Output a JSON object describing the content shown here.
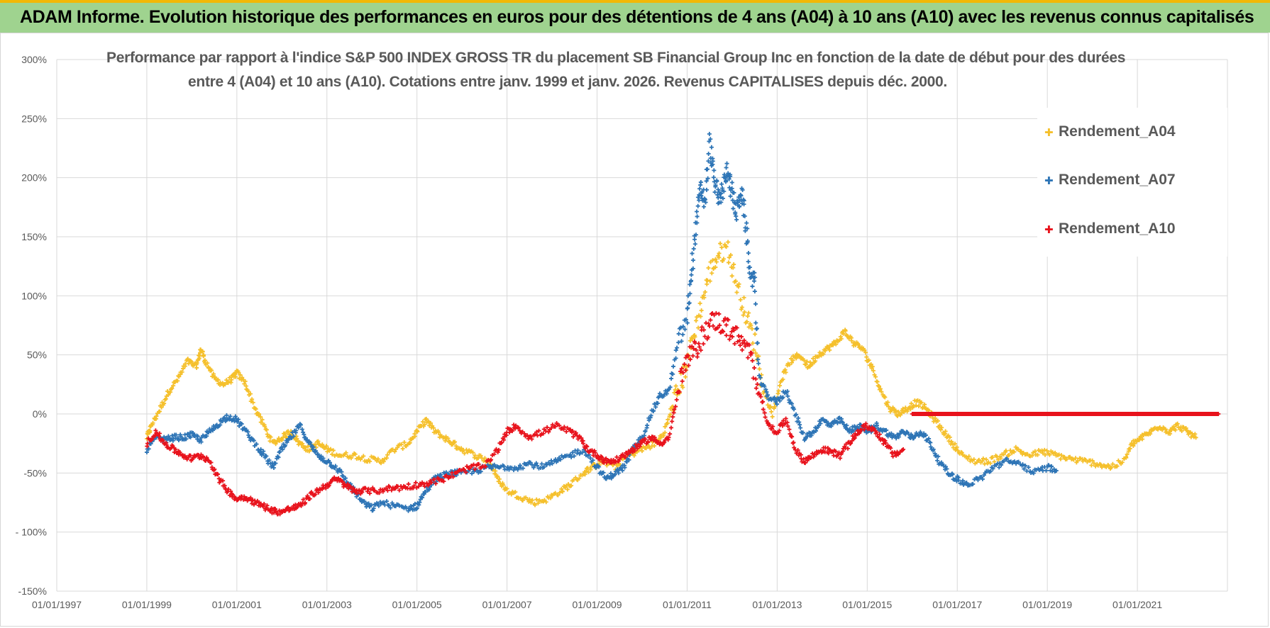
{
  "header": {
    "title": "ADAM Informe. Evolution historique des performances en euros pour des détentions de 4 ans (A04) à 10 ans (A10) avec les revenus connus capitalisés"
  },
  "chart_data": {
    "type": "scatter",
    "title_line1": "Performance par rapport à l'indice S&P 500 INDEX GROSS TR  du placement SB Financial Group Inc en fonction de la date de début pour des durées",
    "title_line2": "entre 4 (A04) et 10 ans (A10).  Cotations entre janv. 1999 et janv. 2026. Revenus CAPITALISES depuis déc. 2000.",
    "xlabel": "",
    "ylabel": "",
    "x_tick_labels": [
      "01/01/1997",
      "01/01/1999",
      "01/01/2001",
      "01/01/2003",
      "01/01/2005",
      "01/01/2007",
      "01/01/2009",
      "01/01/2011",
      "01/01/2013",
      "01/01/2015",
      "01/01/2017",
      "01/01/2019",
      "01/01/2021"
    ],
    "x_ticks_year": [
      1997,
      1999,
      2001,
      2003,
      2005,
      2007,
      2009,
      2011,
      2013,
      2015,
      2017,
      2019,
      2021
    ],
    "xlim": [
      1997,
      2023
    ],
    "y_tick_values": [
      300,
      250,
      200,
      150,
      100,
      50,
      0,
      -50,
      -100,
      -150
    ],
    "y_tick_labels": [
      "300%",
      "250%",
      "200%",
      "150%",
      "100%",
      "50%",
      "0%",
      "-50%",
      "- 100%",
      "-150%"
    ],
    "ylim": [
      -150,
      300
    ],
    "legend_position": "top-right",
    "series": [
      {
        "name": "Rendement_A04",
        "color": "#f5c02c",
        "points": [
          [
            1999.0,
            -20
          ],
          [
            1999.1,
            -10
          ],
          [
            1999.3,
            5
          ],
          [
            1999.5,
            20
          ],
          [
            1999.7,
            30
          ],
          [
            1999.9,
            45
          ],
          [
            2000.1,
            40
          ],
          [
            2000.2,
            55
          ],
          [
            2000.3,
            45
          ],
          [
            2000.5,
            30
          ],
          [
            2000.7,
            25
          ],
          [
            2000.9,
            30
          ],
          [
            2001.0,
            35
          ],
          [
            2001.2,
            25
          ],
          [
            2001.4,
            5
          ],
          [
            2001.6,
            -10
          ],
          [
            2001.8,
            -25
          ],
          [
            2002.0,
            -20
          ],
          [
            2002.2,
            -15
          ],
          [
            2002.4,
            -25
          ],
          [
            2002.6,
            -30
          ],
          [
            2002.8,
            -25
          ],
          [
            2003.0,
            -30
          ],
          [
            2003.3,
            -35
          ],
          [
            2003.6,
            -35
          ],
          [
            2003.9,
            -38
          ],
          [
            2004.2,
            -40
          ],
          [
            2004.5,
            -30
          ],
          [
            2004.8,
            -25
          ],
          [
            2005.0,
            -15
          ],
          [
            2005.2,
            -5
          ],
          [
            2005.4,
            -15
          ],
          [
            2005.6,
            -20
          ],
          [
            2005.8,
            -25
          ],
          [
            2006.0,
            -30
          ],
          [
            2006.3,
            -35
          ],
          [
            2006.6,
            -40
          ],
          [
            2006.8,
            -55
          ],
          [
            2007.0,
            -65
          ],
          [
            2007.3,
            -70
          ],
          [
            2007.6,
            -75
          ],
          [
            2007.9,
            -72
          ],
          [
            2008.2,
            -65
          ],
          [
            2008.4,
            -60
          ],
          [
            2008.7,
            -50
          ],
          [
            2008.9,
            -45
          ],
          [
            2009.1,
            -40
          ],
          [
            2009.4,
            -45
          ],
          [
            2009.7,
            -35
          ],
          [
            2010.0,
            -30
          ],
          [
            2010.3,
            -25
          ],
          [
            2010.5,
            -15
          ],
          [
            2010.7,
            10
          ],
          [
            2010.9,
            30
          ],
          [
            2011.1,
            60
          ],
          [
            2011.3,
            90
          ],
          [
            2011.5,
            120
          ],
          [
            2011.7,
            135
          ],
          [
            2011.9,
            140
          ],
          [
            2012.1,
            110
          ],
          [
            2012.3,
            85
          ],
          [
            2012.5,
            60
          ],
          [
            2012.7,
            20
          ],
          [
            2012.9,
            0
          ],
          [
            2013.1,
            30
          ],
          [
            2013.3,
            45
          ],
          [
            2013.5,
            50
          ],
          [
            2013.7,
            40
          ],
          [
            2013.9,
            50
          ],
          [
            2014.1,
            55
          ],
          [
            2014.3,
            60
          ],
          [
            2014.5,
            70
          ],
          [
            2014.7,
            60
          ],
          [
            2014.9,
            55
          ],
          [
            2015.1,
            40
          ],
          [
            2015.3,
            20
          ],
          [
            2015.5,
            5
          ],
          [
            2015.7,
            0
          ],
          [
            2015.9,
            5
          ],
          [
            2016.1,
            10
          ],
          [
            2016.3,
            5
          ],
          [
            2016.5,
            -5
          ],
          [
            2016.7,
            -15
          ],
          [
            2016.9,
            -25
          ],
          [
            2017.1,
            -35
          ],
          [
            2017.4,
            -40
          ],
          [
            2017.7,
            -40
          ],
          [
            2018.0,
            -35
          ],
          [
            2018.3,
            -30
          ],
          [
            2018.6,
            -35
          ],
          [
            2018.9,
            -32
          ],
          [
            2019.2,
            -35
          ],
          [
            2019.5,
            -38
          ],
          [
            2019.8,
            -40
          ],
          [
            2020.1,
            -42
          ],
          [
            2020.4,
            -45
          ],
          [
            2020.7,
            -40
          ],
          [
            2020.9,
            -25
          ],
          [
            2021.1,
            -20
          ],
          [
            2021.3,
            -15
          ],
          [
            2021.5,
            -10
          ],
          [
            2021.7,
            -15
          ],
          [
            2021.9,
            -10
          ],
          [
            2022.1,
            -15
          ],
          [
            2022.3,
            -20
          ]
        ]
      },
      {
        "name": "Rendement_A07",
        "color": "#2e75b6",
        "points": [
          [
            1999.0,
            -30
          ],
          [
            1999.2,
            -20
          ],
          [
            1999.4,
            -22
          ],
          [
            1999.6,
            -20
          ],
          [
            1999.8,
            -20
          ],
          [
            2000.0,
            -18
          ],
          [
            2000.2,
            -22
          ],
          [
            2000.4,
            -15
          ],
          [
            2000.6,
            -8
          ],
          [
            2000.8,
            -2
          ],
          [
            2001.0,
            -5
          ],
          [
            2001.2,
            -15
          ],
          [
            2001.4,
            -25
          ],
          [
            2001.6,
            -35
          ],
          [
            2001.8,
            -45
          ],
          [
            2002.0,
            -30
          ],
          [
            2002.2,
            -20
          ],
          [
            2002.4,
            -10
          ],
          [
            2002.6,
            -25
          ],
          [
            2002.8,
            -35
          ],
          [
            2003.0,
            -40
          ],
          [
            2003.2,
            -45
          ],
          [
            2003.4,
            -55
          ],
          [
            2003.6,
            -65
          ],
          [
            2003.8,
            -75
          ],
          [
            2004.0,
            -80
          ],
          [
            2004.2,
            -75
          ],
          [
            2004.5,
            -78
          ],
          [
            2004.8,
            -80
          ],
          [
            2005.0,
            -78
          ],
          [
            2005.2,
            -65
          ],
          [
            2005.4,
            -55
          ],
          [
            2005.6,
            -52
          ],
          [
            2005.8,
            -50
          ],
          [
            2006.0,
            -50
          ],
          [
            2006.3,
            -48
          ],
          [
            2006.6,
            -45
          ],
          [
            2006.9,
            -45
          ],
          [
            2007.2,
            -45
          ],
          [
            2007.5,
            -42
          ],
          [
            2007.8,
            -45
          ],
          [
            2008.1,
            -40
          ],
          [
            2008.4,
            -35
          ],
          [
            2008.7,
            -30
          ],
          [
            2009.0,
            -45
          ],
          [
            2009.2,
            -55
          ],
          [
            2009.4,
            -50
          ],
          [
            2009.6,
            -45
          ],
          [
            2009.8,
            -30
          ],
          [
            2010.0,
            -20
          ],
          [
            2010.2,
            0
          ],
          [
            2010.4,
            15
          ],
          [
            2010.6,
            20
          ],
          [
            2010.8,
            60
          ],
          [
            2011.0,
            80
          ],
          [
            2011.1,
            120
          ],
          [
            2011.2,
            160
          ],
          [
            2011.3,
            190
          ],
          [
            2011.4,
            180
          ],
          [
            2011.5,
            230
          ],
          [
            2011.6,
            200
          ],
          [
            2011.7,
            180
          ],
          [
            2011.8,
            190
          ],
          [
            2011.9,
            210
          ],
          [
            2012.0,
            185
          ],
          [
            2012.1,
            170
          ],
          [
            2012.2,
            190
          ],
          [
            2012.3,
            160
          ],
          [
            2012.4,
            120
          ],
          [
            2012.5,
            110
          ],
          [
            2012.6,
            30
          ],
          [
            2012.8,
            15
          ],
          [
            2013.0,
            10
          ],
          [
            2013.2,
            20
          ],
          [
            2013.4,
            0
          ],
          [
            2013.6,
            -20
          ],
          [
            2013.8,
            -15
          ],
          [
            2014.0,
            -5
          ],
          [
            2014.2,
            -10
          ],
          [
            2014.4,
            -5
          ],
          [
            2014.6,
            -15
          ],
          [
            2014.8,
            -10
          ],
          [
            2015.0,
            -15
          ],
          [
            2015.2,
            -10
          ],
          [
            2015.4,
            -15
          ],
          [
            2015.6,
            -20
          ],
          [
            2015.8,
            -15
          ],
          [
            2016.0,
            -20
          ],
          [
            2016.2,
            -15
          ],
          [
            2016.4,
            -25
          ],
          [
            2016.6,
            -40
          ],
          [
            2016.8,
            -50
          ],
          [
            2017.0,
            -55
          ],
          [
            2017.2,
            -60
          ],
          [
            2017.5,
            -55
          ],
          [
            2017.8,
            -45
          ],
          [
            2018.1,
            -40
          ],
          [
            2018.4,
            -42
          ],
          [
            2018.7,
            -50
          ],
          [
            2019.0,
            -45
          ],
          [
            2019.2,
            -48
          ]
        ]
      },
      {
        "name": "Rendement_A10",
        "color": "#e8131c",
        "points": [
          [
            1999.0,
            -25
          ],
          [
            1999.2,
            -15
          ],
          [
            1999.4,
            -25
          ],
          [
            1999.6,
            -30
          ],
          [
            1999.8,
            -35
          ],
          [
            2000.0,
            -38
          ],
          [
            2000.2,
            -35
          ],
          [
            2000.4,
            -40
          ],
          [
            2000.6,
            -55
          ],
          [
            2000.8,
            -65
          ],
          [
            2001.0,
            -72
          ],
          [
            2001.2,
            -70
          ],
          [
            2001.4,
            -75
          ],
          [
            2001.6,
            -78
          ],
          [
            2001.8,
            -82
          ],
          [
            2002.0,
            -83
          ],
          [
            2002.2,
            -80
          ],
          [
            2002.4,
            -78
          ],
          [
            2002.6,
            -70
          ],
          [
            2002.8,
            -65
          ],
          [
            2003.0,
            -60
          ],
          [
            2003.2,
            -55
          ],
          [
            2003.4,
            -60
          ],
          [
            2003.6,
            -65
          ],
          [
            2003.8,
            -65
          ],
          [
            2004.1,
            -65
          ],
          [
            2004.4,
            -63
          ],
          [
            2004.7,
            -62
          ],
          [
            2005.0,
            -60
          ],
          [
            2005.3,
            -58
          ],
          [
            2005.6,
            -55
          ],
          [
            2005.9,
            -50
          ],
          [
            2006.2,
            -45
          ],
          [
            2006.5,
            -45
          ],
          [
            2006.8,
            -30
          ],
          [
            2007.0,
            -15
          ],
          [
            2007.2,
            -10
          ],
          [
            2007.5,
            -20
          ],
          [
            2007.8,
            -15
          ],
          [
            2008.1,
            -10
          ],
          [
            2008.4,
            -15
          ],
          [
            2008.6,
            -20
          ],
          [
            2008.8,
            -30
          ],
          [
            2009.0,
            -35
          ],
          [
            2009.2,
            -40
          ],
          [
            2009.4,
            -40
          ],
          [
            2009.6,
            -35
          ],
          [
            2009.8,
            -30
          ],
          [
            2010.0,
            -25
          ],
          [
            2010.2,
            -20
          ],
          [
            2010.4,
            -25
          ],
          [
            2010.6,
            -20
          ],
          [
            2010.8,
            20
          ],
          [
            2011.0,
            45
          ],
          [
            2011.2,
            55
          ],
          [
            2011.4,
            70
          ],
          [
            2011.6,
            80
          ],
          [
            2011.8,
            75
          ],
          [
            2012.0,
            70
          ],
          [
            2012.2,
            60
          ],
          [
            2012.4,
            50
          ],
          [
            2012.6,
            20
          ],
          [
            2012.8,
            -10
          ],
          [
            2013.0,
            -15
          ],
          [
            2013.2,
            -5
          ],
          [
            2013.4,
            -30
          ],
          [
            2013.6,
            -40
          ],
          [
            2013.8,
            -35
          ],
          [
            2014.0,
            -30
          ],
          [
            2014.2,
            -32
          ],
          [
            2014.4,
            -35
          ],
          [
            2014.6,
            -25
          ],
          [
            2014.8,
            -15
          ],
          [
            2015.0,
            -10
          ],
          [
            2015.2,
            -15
          ],
          [
            2015.4,
            -25
          ],
          [
            2015.6,
            -35
          ],
          [
            2015.8,
            -30
          ]
        ],
        "flat_segment": {
          "x_start": 2016.0,
          "x_end": 2022.8,
          "y": 0
        }
      }
    ]
  }
}
